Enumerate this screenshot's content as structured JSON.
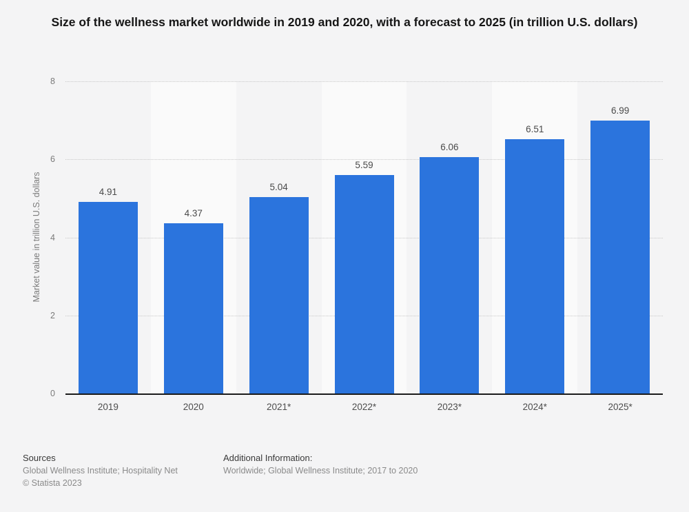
{
  "title": "Size of the wellness market worldwide in 2019 and 2020, with a forecast to 2025 (in trillion U.S. dollars)",
  "chart_data": {
    "type": "bar",
    "categories": [
      "2019",
      "2020",
      "2021*",
      "2022*",
      "2023*",
      "2024*",
      "2025*"
    ],
    "values": [
      4.91,
      4.37,
      5.04,
      5.59,
      6.06,
      6.51,
      6.99
    ],
    "value_labels": [
      "4.91",
      "4.37",
      "5.04",
      "5.59",
      "6.06",
      "6.51",
      "6.99"
    ],
    "title": "Size of the wellness market worldwide in 2019 and 2020, with a forecast to 2025 (in trillion U.S. dollars)",
    "xlabel": "",
    "ylabel": "Market value in trillion U.S. dollars",
    "ylim": [
      0,
      8
    ],
    "yticks": [
      0,
      2,
      4,
      6,
      8
    ],
    "grid": "horizontal dotted",
    "legend": "none",
    "bar_color": "#2b74dd"
  },
  "colors": {
    "page_background": "#f4f4f5",
    "column_stripe_alt": "#fafafa",
    "bar": "#2b74dd",
    "axis_line": "#1a1a1a",
    "gridline": "#c8c8c8",
    "tick_label": "#7a7a7a",
    "value_label": "#4a4a4a",
    "footer_gray": "#8a8a8a"
  },
  "footer": {
    "sources_heading": "Sources",
    "sources_line": "Global Wellness Institute; Hospitality Net",
    "copyright": "© Statista 2023",
    "additional_heading": "Additional Information:",
    "additional_line": "Worldwide; Global Wellness Institute; 2017 to 2020"
  }
}
